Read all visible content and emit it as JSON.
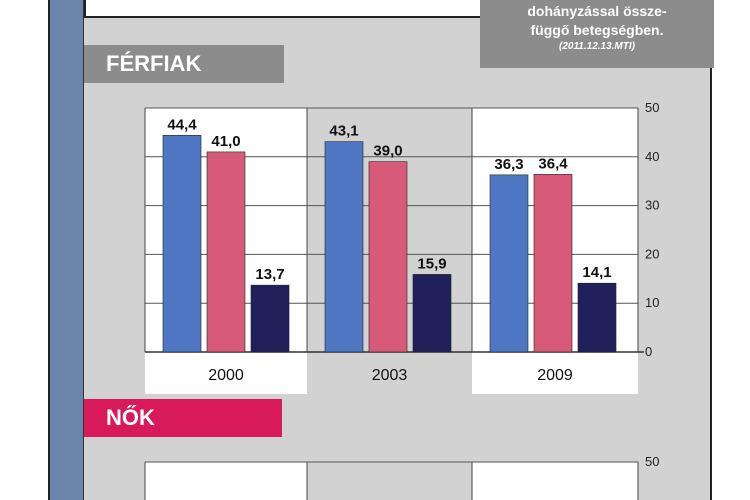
{
  "note": {
    "lines": [
      "dohányzással össze-",
      "függő betegségben."
    ],
    "source": "(2011.12.13.MTI)"
  },
  "sections": {
    "men_label": "FÉRFIAK",
    "women_label": "NŐK"
  },
  "colors": {
    "series1": "#4f76c3",
    "series2": "#d75a78",
    "series3": "#1f1f5c",
    "men_label_bg": "#8c8c8c",
    "women_label_bg": "#d8195a",
    "left_bar": "#6a84aa"
  },
  "chart_data": [
    {
      "type": "bar",
      "title": "FÉRFIAK",
      "categories": [
        "2000",
        "2003",
        "2009"
      ],
      "series": [
        {
          "values": [
            44.4,
            43.1,
            36.3
          ],
          "labels": [
            "44,4",
            "43,1",
            "36,3"
          ]
        },
        {
          "values": [
            41.0,
            39.0,
            36.4
          ],
          "labels": [
            "41,0",
            "39,0",
            "36,4"
          ]
        },
        {
          "values": [
            13.7,
            15.9,
            14.1
          ],
          "labels": [
            "13,7",
            "15,9",
            "14,1"
          ]
        }
      ],
      "ylim": [
        0,
        50
      ],
      "yticks": [
        "0",
        "10",
        "20",
        "30",
        "40",
        "50"
      ],
      "grid": true,
      "axis_side": "right"
    },
    {
      "type": "bar",
      "title": "NŐK",
      "categories": [],
      "series": [],
      "ylim": [
        0,
        50
      ],
      "yticks": [
        "50"
      ],
      "axis_side": "right"
    }
  ]
}
